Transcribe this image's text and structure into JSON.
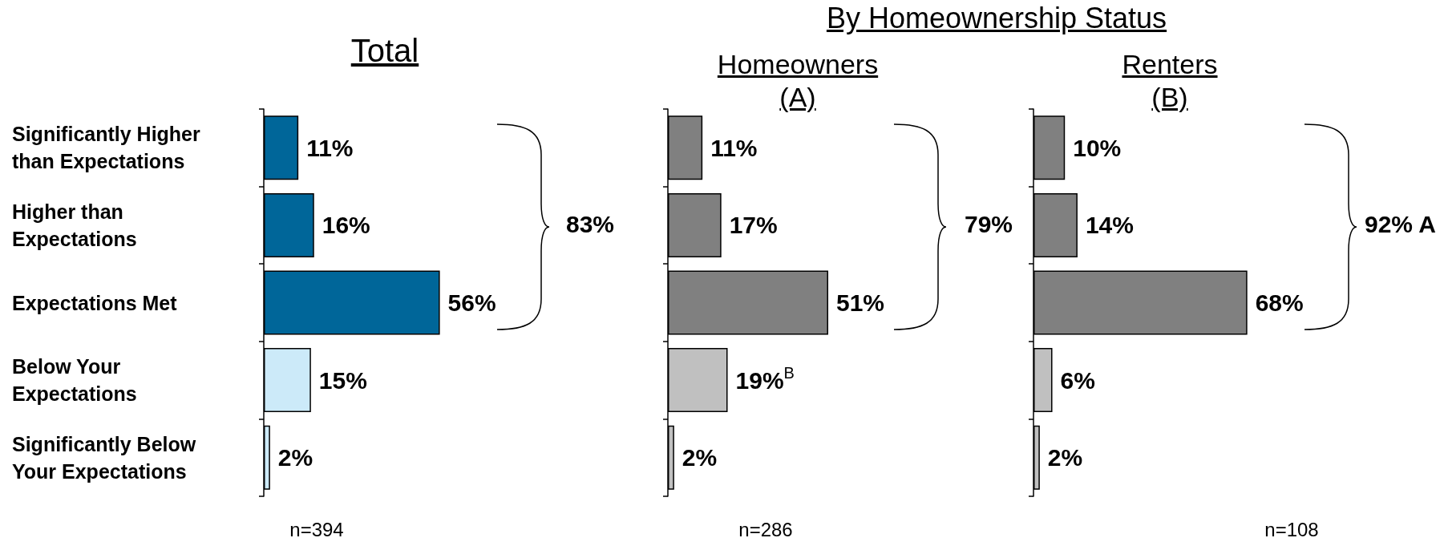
{
  "chart_data": [
    {
      "type": "bar",
      "orientation": "horizontal",
      "title": "Total",
      "categories": [
        "Significantly Higher than Expectations",
        "Higher than Expectations",
        "Expectations Met",
        "Below Your Expectations",
        "Significantly Below Your Expectations"
      ],
      "values": [
        11,
        16,
        56,
        15,
        2
      ],
      "colors": [
        "#006699",
        "#006699",
        "#006699",
        "#cceaf9",
        "#cceaf9"
      ],
      "value_labels": [
        "11%",
        "16%",
        "56%",
        "15%",
        "2%"
      ],
      "annotations": [
        "83%",
        "n=394"
      ],
      "tick_labels": "y"
    },
    {
      "type": "bar",
      "orientation": "horizontal",
      "title": "By Homeownership Status",
      "subtitle": "Homeowners\n(A)",
      "categories": [
        "Significantly Higher than Expectations",
        "Higher than Expectations",
        "Expectations Met",
        "Below Your Expectations",
        "Significantly Below Your Expectations"
      ],
      "values": [
        11,
        17,
        51,
        19,
        2
      ],
      "colors": [
        "#808080",
        "#808080",
        "#808080",
        "#c0c0c0",
        "#c0c0c0"
      ],
      "value_labels": [
        "11%",
        "17%",
        "51%",
        "19%$^{B}$",
        "2%"
      ],
      "annotations": [
        "79%",
        "n=286"
      ],
      "tick_labels": false
    },
    {
      "type": "bar",
      "orientation": "horizontal",
      "subtitle": "Renters\n(B)",
      "categories": [
        "Significantly Higher than Expectations",
        "Higher than Expectations",
        "Expectations Met",
        "Below Your Expectations",
        "Significantly Below Your Expectations"
      ],
      "values": [
        10,
        14,
        68,
        6,
        2
      ],
      "colors": [
        "#808080",
        "#808080",
        "#808080",
        "#c0c0c0",
        "#c0c0c0"
      ],
      "value_labels": [
        "10%",
        "14%",
        "68%",
        "6%",
        "2%"
      ],
      "annotations": [
        "92% A",
        "n=108"
      ],
      "tick_labels": false
    }
  ]
}
